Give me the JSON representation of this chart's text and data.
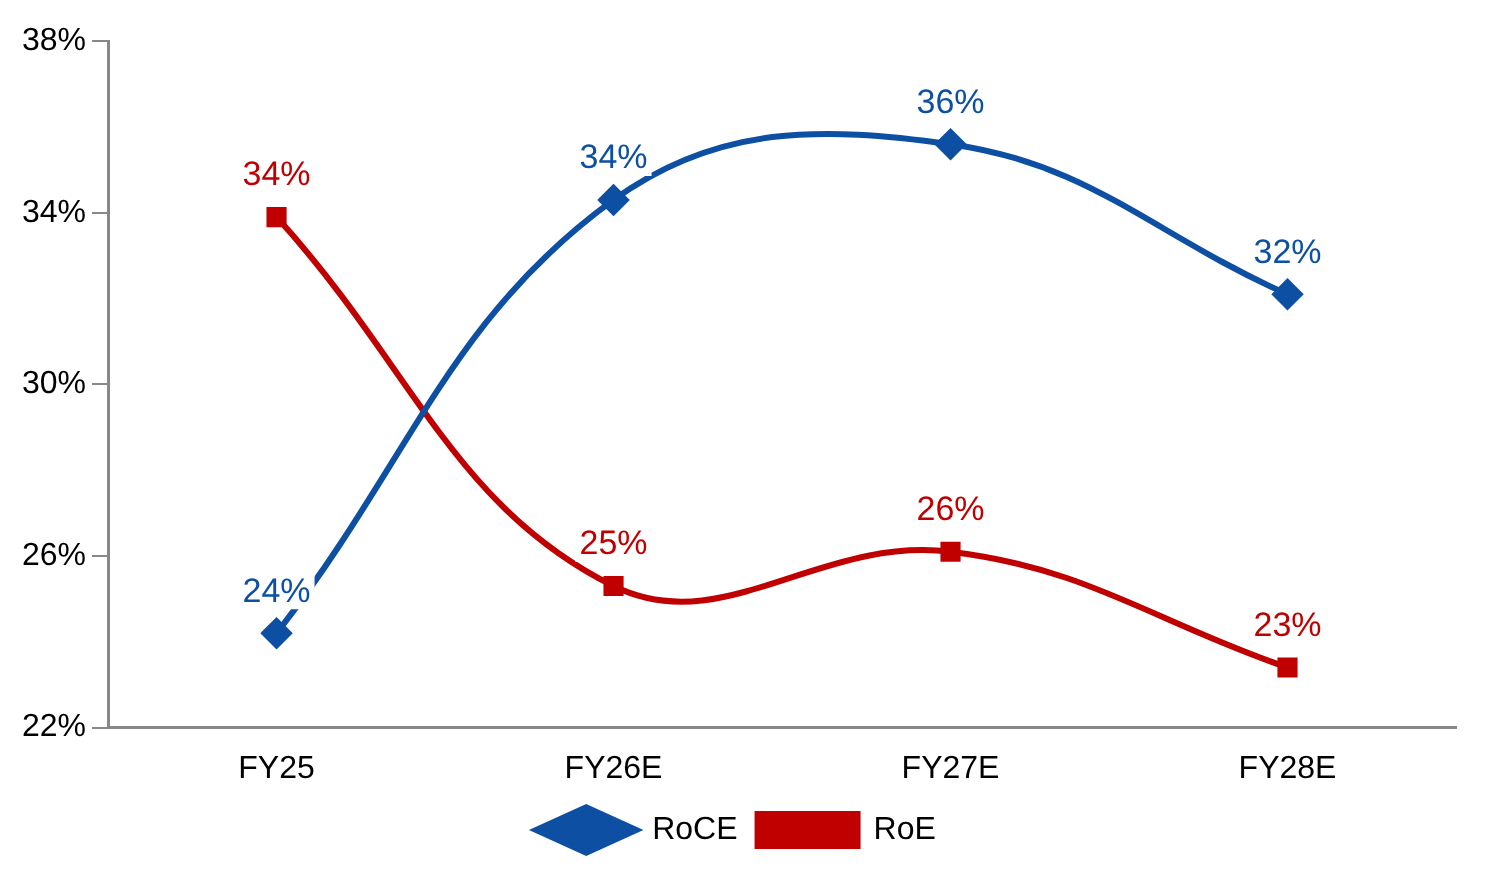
{
  "chart_data": {
    "type": "line",
    "categories": [
      "FY25",
      "FY26E",
      "FY27E",
      "FY28E"
    ],
    "series": [
      {
        "name": "RoCE",
        "color": "#0d4fa3",
        "marker": "diamond",
        "values": [
          24.2,
          34.3,
          35.6,
          32.1
        ],
        "value_labels": [
          "24%",
          "34%",
          "36%",
          "32%"
        ]
      },
      {
        "name": "RoE",
        "color": "#c00000",
        "marker": "square",
        "values": [
          33.9,
          25.3,
          26.1,
          23.4
        ],
        "value_labels": [
          "34%",
          "25%",
          "26%",
          "23%"
        ]
      }
    ],
    "ylim": [
      22,
      38
    ],
    "yticks": [
      {
        "value": 22,
        "label": "22%"
      },
      {
        "value": 26,
        "label": "26%"
      },
      {
        "value": 30,
        "label": "30%"
      },
      {
        "value": 34,
        "label": "34%"
      },
      {
        "value": 38,
        "label": "38%"
      }
    ],
    "grid": false,
    "legend": "bottom",
    "line_style": "solid"
  }
}
